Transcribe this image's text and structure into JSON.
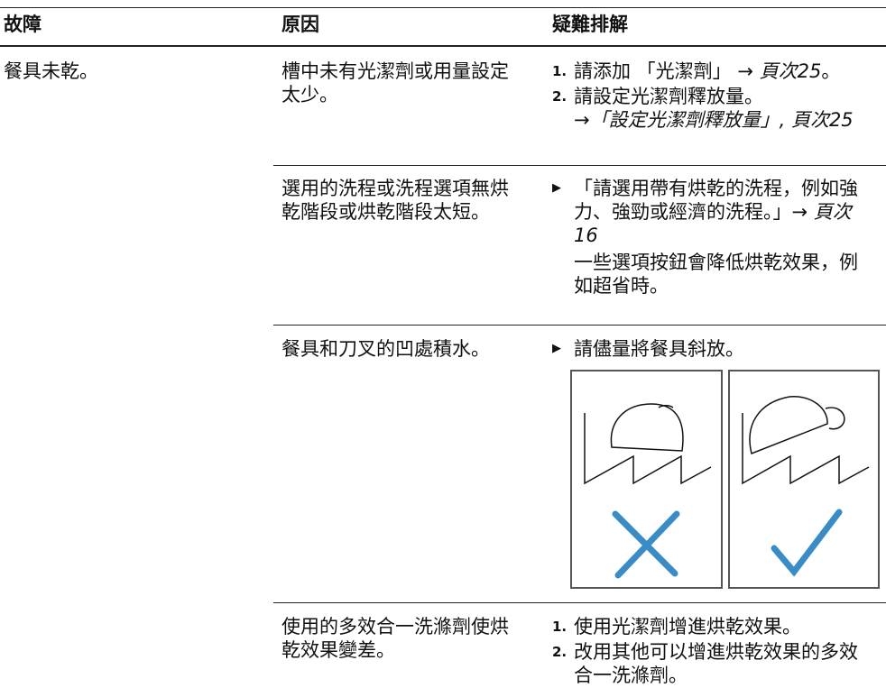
{
  "table": {
    "header": [
      "故障",
      "原因",
      "疑難排解"
    ],
    "rows": [
      {
        "problem": "餐具未乾。",
        "cause": "槽中未有光潔劑或用量設定太少。",
        "steps": [
          {
            "num": "1.",
            "text": "請添加 「光潔劑」 → ",
            "ref": "頁次25",
            "end": "。"
          },
          {
            "num": "2.",
            "text": "請設定光潔劑釋放量。",
            "ref": "→「設定光潔劑釋放量」, 頁次25"
          }
        ]
      },
      {
        "cause": "選用的洗程或洗程選項無烘乾階段或烘乾階段太短。",
        "bullet": {
          "text": "「請選用帶有烘乾的洗程，例如強力、強勁或經濟的洗程。」→ ",
          "ref": "頁次16"
        },
        "note": "一些選項按鈕會降低烘乾效果，例如超省時。"
      },
      {
        "cause": "餐具和刀叉的凹處積水。",
        "bullet": {
          "text": "請儘量將餐具斜放。"
        }
      },
      {
        "cause": "使用的多效合一洗滌劑使烘乾效果變差。",
        "steps": [
          {
            "num": "1.",
            "text": "使用光潔劑增進烘乾效果。"
          },
          {
            "num": "2.",
            "text": "改用其他可以增進烘乾效果的多效合一洗滌劑。"
          }
        ]
      }
    ]
  }
}
